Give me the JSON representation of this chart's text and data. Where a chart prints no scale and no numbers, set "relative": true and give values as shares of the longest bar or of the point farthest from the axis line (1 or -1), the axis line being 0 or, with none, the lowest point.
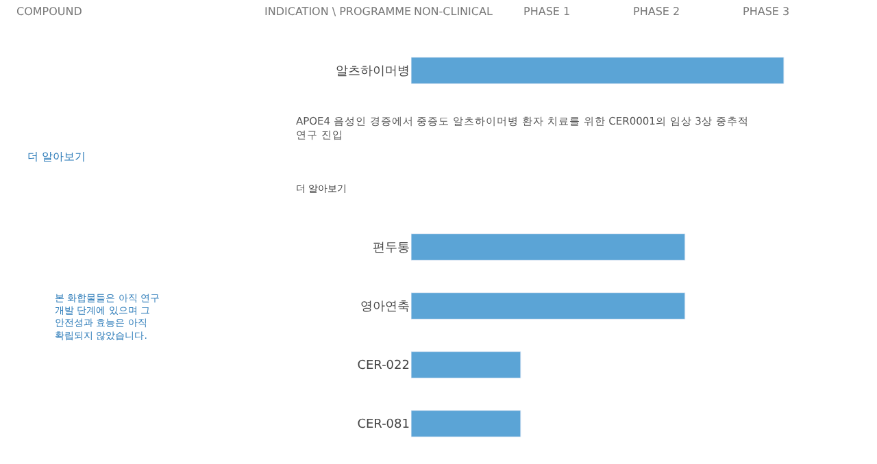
{
  "chart_data": {
    "type": "bar",
    "orientation": "horizontal",
    "relative": true,
    "categories": [
      "알츠하이머병",
      null,
      null,
      "편두통",
      "영아연축",
      "CER-022",
      "CER-081"
    ],
    "values": [
      1,
      null,
      null,
      0.735,
      0.735,
      0.294,
      0.294
    ],
    "color": "#5ba4d6",
    "annotations": [
      "COMPOUND",
      "INDICATION \\ PROGRAMME",
      "NON-CLINICAL",
      "PHASE 1",
      "PHASE 2",
      "PHASE 3",
      "더 알아보기",
      "본 화합물들은 아직 연구\n개발 단계에 있으며 그\n안전성과 효능은 아직\n확립되지 않았습니다.",
      "APOE4 음성인 경증에서 중증도 알츠하이머병 환자 치료를 위한 CER0001의 임상 3상 중추적\n연구 진입",
      "더 알아보기"
    ]
  }
}
